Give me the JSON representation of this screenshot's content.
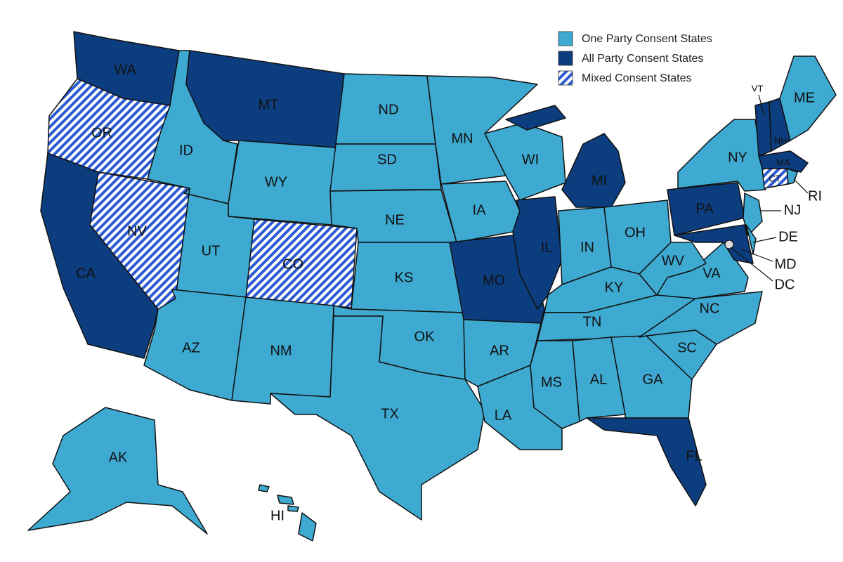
{
  "legend": [
    {
      "label": "One Party Consent States",
      "color": "#3eaad1"
    },
    {
      "label": "All Party Consent States",
      "color": "#0c3d7e"
    },
    {
      "label": "Mixed Consent States",
      "color": "#2a5bd0",
      "pattern": "hatch"
    }
  ],
  "states": [
    {
      "label": "WA",
      "consent": "All Party Consent States"
    },
    {
      "label": "OR",
      "consent": "Mixed Consent States"
    },
    {
      "label": "CA",
      "consent": "All Party Consent States"
    },
    {
      "label": "NV",
      "consent": "Mixed Consent States"
    },
    {
      "label": "ID",
      "consent": "One Party Consent States"
    },
    {
      "label": "MT",
      "consent": "All Party Consent States"
    },
    {
      "label": "WY",
      "consent": "One Party Consent States"
    },
    {
      "label": "UT",
      "consent": "One Party Consent States"
    },
    {
      "label": "CO",
      "consent": "Mixed Consent States"
    },
    {
      "label": "AZ",
      "consent": "One Party Consent States"
    },
    {
      "label": "NM",
      "consent": "One Party Consent States"
    },
    {
      "label": "ND",
      "consent": "One Party Consent States"
    },
    {
      "label": "SD",
      "consent": "One Party Consent States"
    },
    {
      "label": "NE",
      "consent": "One Party Consent States"
    },
    {
      "label": "KS",
      "consent": "One Party Consent States"
    },
    {
      "label": "OK",
      "consent": "One Party Consent States"
    },
    {
      "label": "TX",
      "consent": "One Party Consent States"
    },
    {
      "label": "MN",
      "consent": "One Party Consent States"
    },
    {
      "label": "IA",
      "consent": "One Party Consent States"
    },
    {
      "label": "MO",
      "consent": "All Party Consent States"
    },
    {
      "label": "AR",
      "consent": "One Party Consent States"
    },
    {
      "label": "LA",
      "consent": "One Party Consent States"
    },
    {
      "label": "WI",
      "consent": "One Party Consent States"
    },
    {
      "label": "IL",
      "consent": "All Party Consent States"
    },
    {
      "label": "MI",
      "consent": "All Party Consent States"
    },
    {
      "label": "IN",
      "consent": "One Party Consent States"
    },
    {
      "label": "OH",
      "consent": "One Party Consent States"
    },
    {
      "label": "KY",
      "consent": "One Party Consent States"
    },
    {
      "label": "TN",
      "consent": "One Party Consent States"
    },
    {
      "label": "MS",
      "consent": "One Party Consent States"
    },
    {
      "label": "AL",
      "consent": "One Party Consent States"
    },
    {
      "label": "GA",
      "consent": "One Party Consent States"
    },
    {
      "label": "FL",
      "consent": "All Party Consent States"
    },
    {
      "label": "SC",
      "consent": "One Party Consent States"
    },
    {
      "label": "NC",
      "consent": "One Party Consent States"
    },
    {
      "label": "VA",
      "consent": "One Party Consent States"
    },
    {
      "label": "WV",
      "consent": "One Party Consent States"
    },
    {
      "label": "PA",
      "consent": "All Party Consent States"
    },
    {
      "label": "NY",
      "consent": "One Party Consent States"
    },
    {
      "label": "NJ",
      "consent": "One Party Consent States"
    },
    {
      "label": "MD",
      "consent": "All Party Consent States"
    },
    {
      "label": "DE",
      "consent": "One Party Consent States"
    },
    {
      "label": "DC",
      "consent": "One Party Consent States"
    },
    {
      "label": "VT",
      "consent": "All Party Consent States"
    },
    {
      "label": "NH",
      "consent": "All Party Consent States"
    },
    {
      "label": "ME",
      "consent": "One Party Consent States"
    },
    {
      "label": "MA",
      "consent": "All Party Consent States"
    },
    {
      "label": "CT",
      "consent": "Mixed Consent States"
    },
    {
      "label": "RI",
      "consent": "One Party Consent States"
    },
    {
      "label": "AK",
      "consent": "One Party Consent States"
    },
    {
      "label": "HI",
      "consent": "One Party Consent States"
    }
  ]
}
